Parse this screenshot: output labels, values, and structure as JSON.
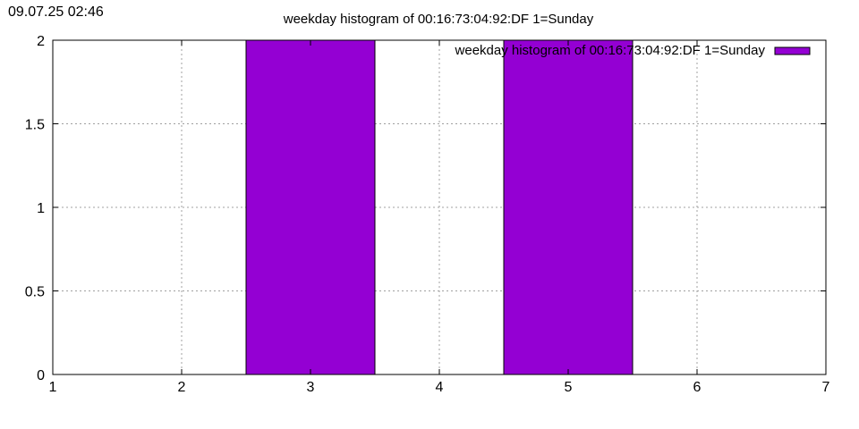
{
  "timestamp": "09.07.25 02:46",
  "chart_data": {
    "type": "bar",
    "title": "weekday histogram of 00:16:73:04:92:DF 1=Sunday",
    "xlabel": "",
    "ylabel": "",
    "xlim": [
      1,
      7
    ],
    "ylim": [
      0,
      2
    ],
    "xticks": [
      1,
      2,
      3,
      4,
      5,
      6,
      7
    ],
    "yticks": [
      0,
      0.5,
      1,
      1.5,
      2
    ],
    "ytick_labels": [
      "0",
      "0.5",
      "1",
      "1.5",
      "2"
    ],
    "grid": true,
    "legend_position": "top-right",
    "series": [
      {
        "name": "weekday histogram of 00:16:73:04:92:DF 1=Sunday",
        "color": "#9400d3",
        "bar_width": 1,
        "x": [
          3,
          5
        ],
        "values": [
          2,
          2
        ]
      }
    ]
  }
}
